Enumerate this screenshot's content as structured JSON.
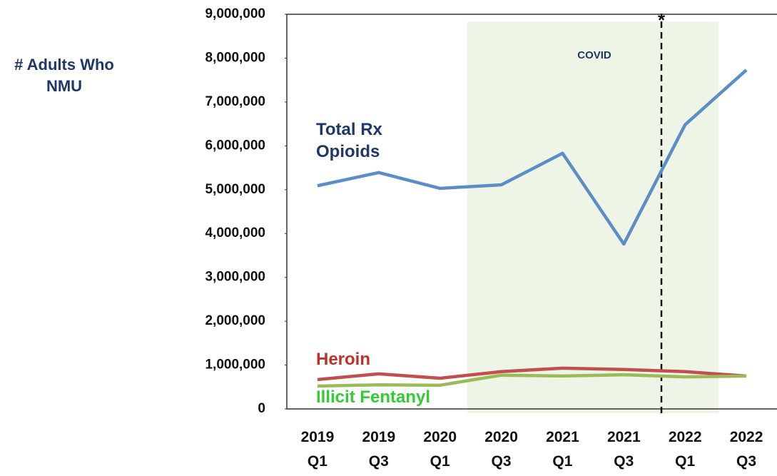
{
  "chart_data": {
    "type": "line",
    "ylabel": "# Adults Who NMU",
    "categories": [
      "2019 Q1",
      "2019 Q3",
      "2020 Q1",
      "2020 Q3",
      "2021 Q1",
      "2021 Q3",
      "2022 Q1",
      "2022 Q3"
    ],
    "series": [
      {
        "name": "Total Rx Opioids",
        "color": "#5b8ec4",
        "label_color": "#1f3864",
        "values": [
          5090000,
          5390000,
          5030000,
          5110000,
          5830000,
          3760000,
          6480000,
          7730000
        ]
      },
      {
        "name": "Heroin",
        "color": "#c0504d",
        "label_color": "#c0302b",
        "values": [
          670000,
          800000,
          700000,
          850000,
          930000,
          900000,
          850000,
          750000
        ]
      },
      {
        "name": "Illicit Fentanyl",
        "color": "#9bbb59",
        "label_color": "#33cc33",
        "values": [
          520000,
          550000,
          540000,
          770000,
          750000,
          780000,
          730000,
          750000
        ]
      }
    ],
    "annotations": [
      "COVID",
      "*"
    ],
    "ylim": [
      0,
      9000000
    ],
    "yticks": [
      {
        "value": 0,
        "label": "0"
      },
      {
        "value": 1000000,
        "label": "1,000,000"
      },
      {
        "value": 2000000,
        "label": "2,000,000"
      },
      {
        "value": 3000000,
        "label": "3,000,000"
      },
      {
        "value": 4000000,
        "label": "4,000,000"
      },
      {
        "value": 5000000,
        "label": "5,000,000"
      },
      {
        "value": 6000000,
        "label": "6,000,000"
      },
      {
        "value": 7000000,
        "label": "7,000,000"
      },
      {
        "value": 8000000,
        "label": "8,000,000"
      },
      {
        "value": 9000000,
        "label": "9,000,000"
      }
    ]
  }
}
